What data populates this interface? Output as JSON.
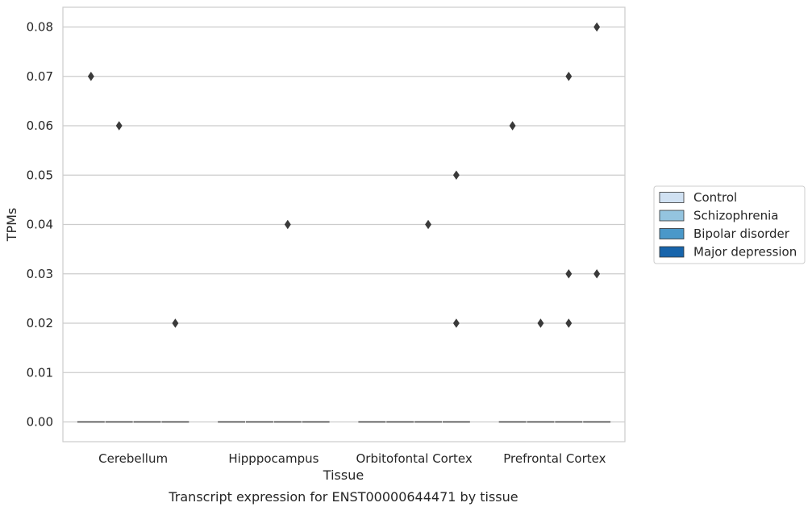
{
  "chart_data": {
    "type": "box",
    "title": "",
    "caption": "Transcript expression for ENST00000644471 by tissue",
    "xlabel": "Tissue",
    "ylabel": "TPMs",
    "ylim": [
      -0.004,
      0.084
    ],
    "yticks": [
      "0.00",
      "0.01",
      "0.02",
      "0.03",
      "0.04",
      "0.05",
      "0.06",
      "0.07",
      "0.08"
    ],
    "grid": true,
    "legend_position": "right",
    "categories": [
      "Cerebellum",
      "Hipppocampus",
      "Orbitofontal Cortex",
      "Prefrontal Cortex"
    ],
    "series": [
      {
        "name": "Control",
        "color": "#d0e1f2",
        "median": [
          0,
          0,
          0,
          0
        ],
        "outliers": [
          [
            0.07
          ],
          [],
          [],
          [
            0.06
          ]
        ]
      },
      {
        "name": "Schizophrenia",
        "color": "#94c4df",
        "median": [
          0,
          0,
          0,
          0
        ],
        "outliers": [
          [
            0.06
          ],
          [],
          [],
          [
            0.02
          ]
        ]
      },
      {
        "name": "Bipolar disorder",
        "color": "#4a98c9",
        "median": [
          0,
          0,
          0,
          0
        ],
        "outliers": [
          [],
          [
            0.04
          ],
          [
            0.04
          ],
          [
            0.07,
            0.03,
            0.02
          ]
        ]
      },
      {
        "name": "Major depression",
        "color": "#1764ab",
        "median": [
          0,
          0,
          0,
          0
        ],
        "outliers": [
          [
            0.02
          ],
          [],
          [
            0.05,
            0.02
          ],
          [
            0.08,
            0.03
          ]
        ]
      }
    ]
  }
}
